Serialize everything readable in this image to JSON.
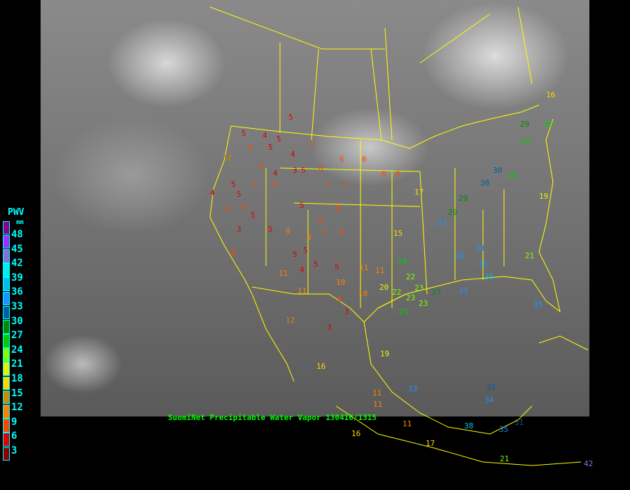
{
  "title": "SuomiNet Precipitable Water Vapor 130416/1315",
  "legend": {
    "title": "PWV",
    "unit": "mm",
    "labels": [
      "48",
      "45",
      "42",
      "39",
      "36",
      "33",
      "30",
      "27",
      "24",
      "21",
      "18",
      "15",
      "12",
      "9",
      "6",
      "3"
    ],
    "colors": [
      "#8b008b",
      "#9b30ff",
      "#8470d8",
      "#00eeee",
      "#00bfee",
      "#1e90ff",
      "#005f9f",
      "#008b00",
      "#00cd00",
      "#7fff00",
      "#eeee00",
      "#ffd700",
      "#cd8c00",
      "#ff8000",
      "#ff4500",
      "#dd0000",
      "#8b0000"
    ]
  },
  "border_color": "#ffff00",
  "stations": [
    "5",
    "5",
    "4",
    "5",
    "6",
    "5",
    "4",
    "7",
    "6",
    "6",
    "6",
    "6",
    "4",
    "3",
    "5",
    "5",
    "6",
    "7",
    "6",
    "7",
    "7",
    "6",
    "6",
    "5",
    "5",
    "6",
    "6",
    "4",
    "5",
    "5",
    "8",
    "9",
    "3",
    "6",
    "7",
    "9",
    "8",
    "5",
    "5",
    "5",
    "4",
    "5",
    "6",
    "3",
    "12",
    "10",
    "11",
    "11",
    "10",
    "11",
    "11",
    "11",
    "16",
    "17",
    "20",
    "22",
    "23",
    "24",
    "23",
    "27",
    "29",
    "30",
    "33",
    "34",
    "35",
    "36",
    "33",
    "34",
    "35",
    "24",
    "22",
    "23",
    "26",
    "19",
    "15",
    "26",
    "29",
    "25",
    "12",
    "3",
    "16",
    "19",
    "21",
    "11",
    "11",
    "17",
    "32",
    "33",
    "34",
    "35",
    "38",
    "31",
    "21",
    "16",
    "30",
    "29",
    "42"
  ]
}
